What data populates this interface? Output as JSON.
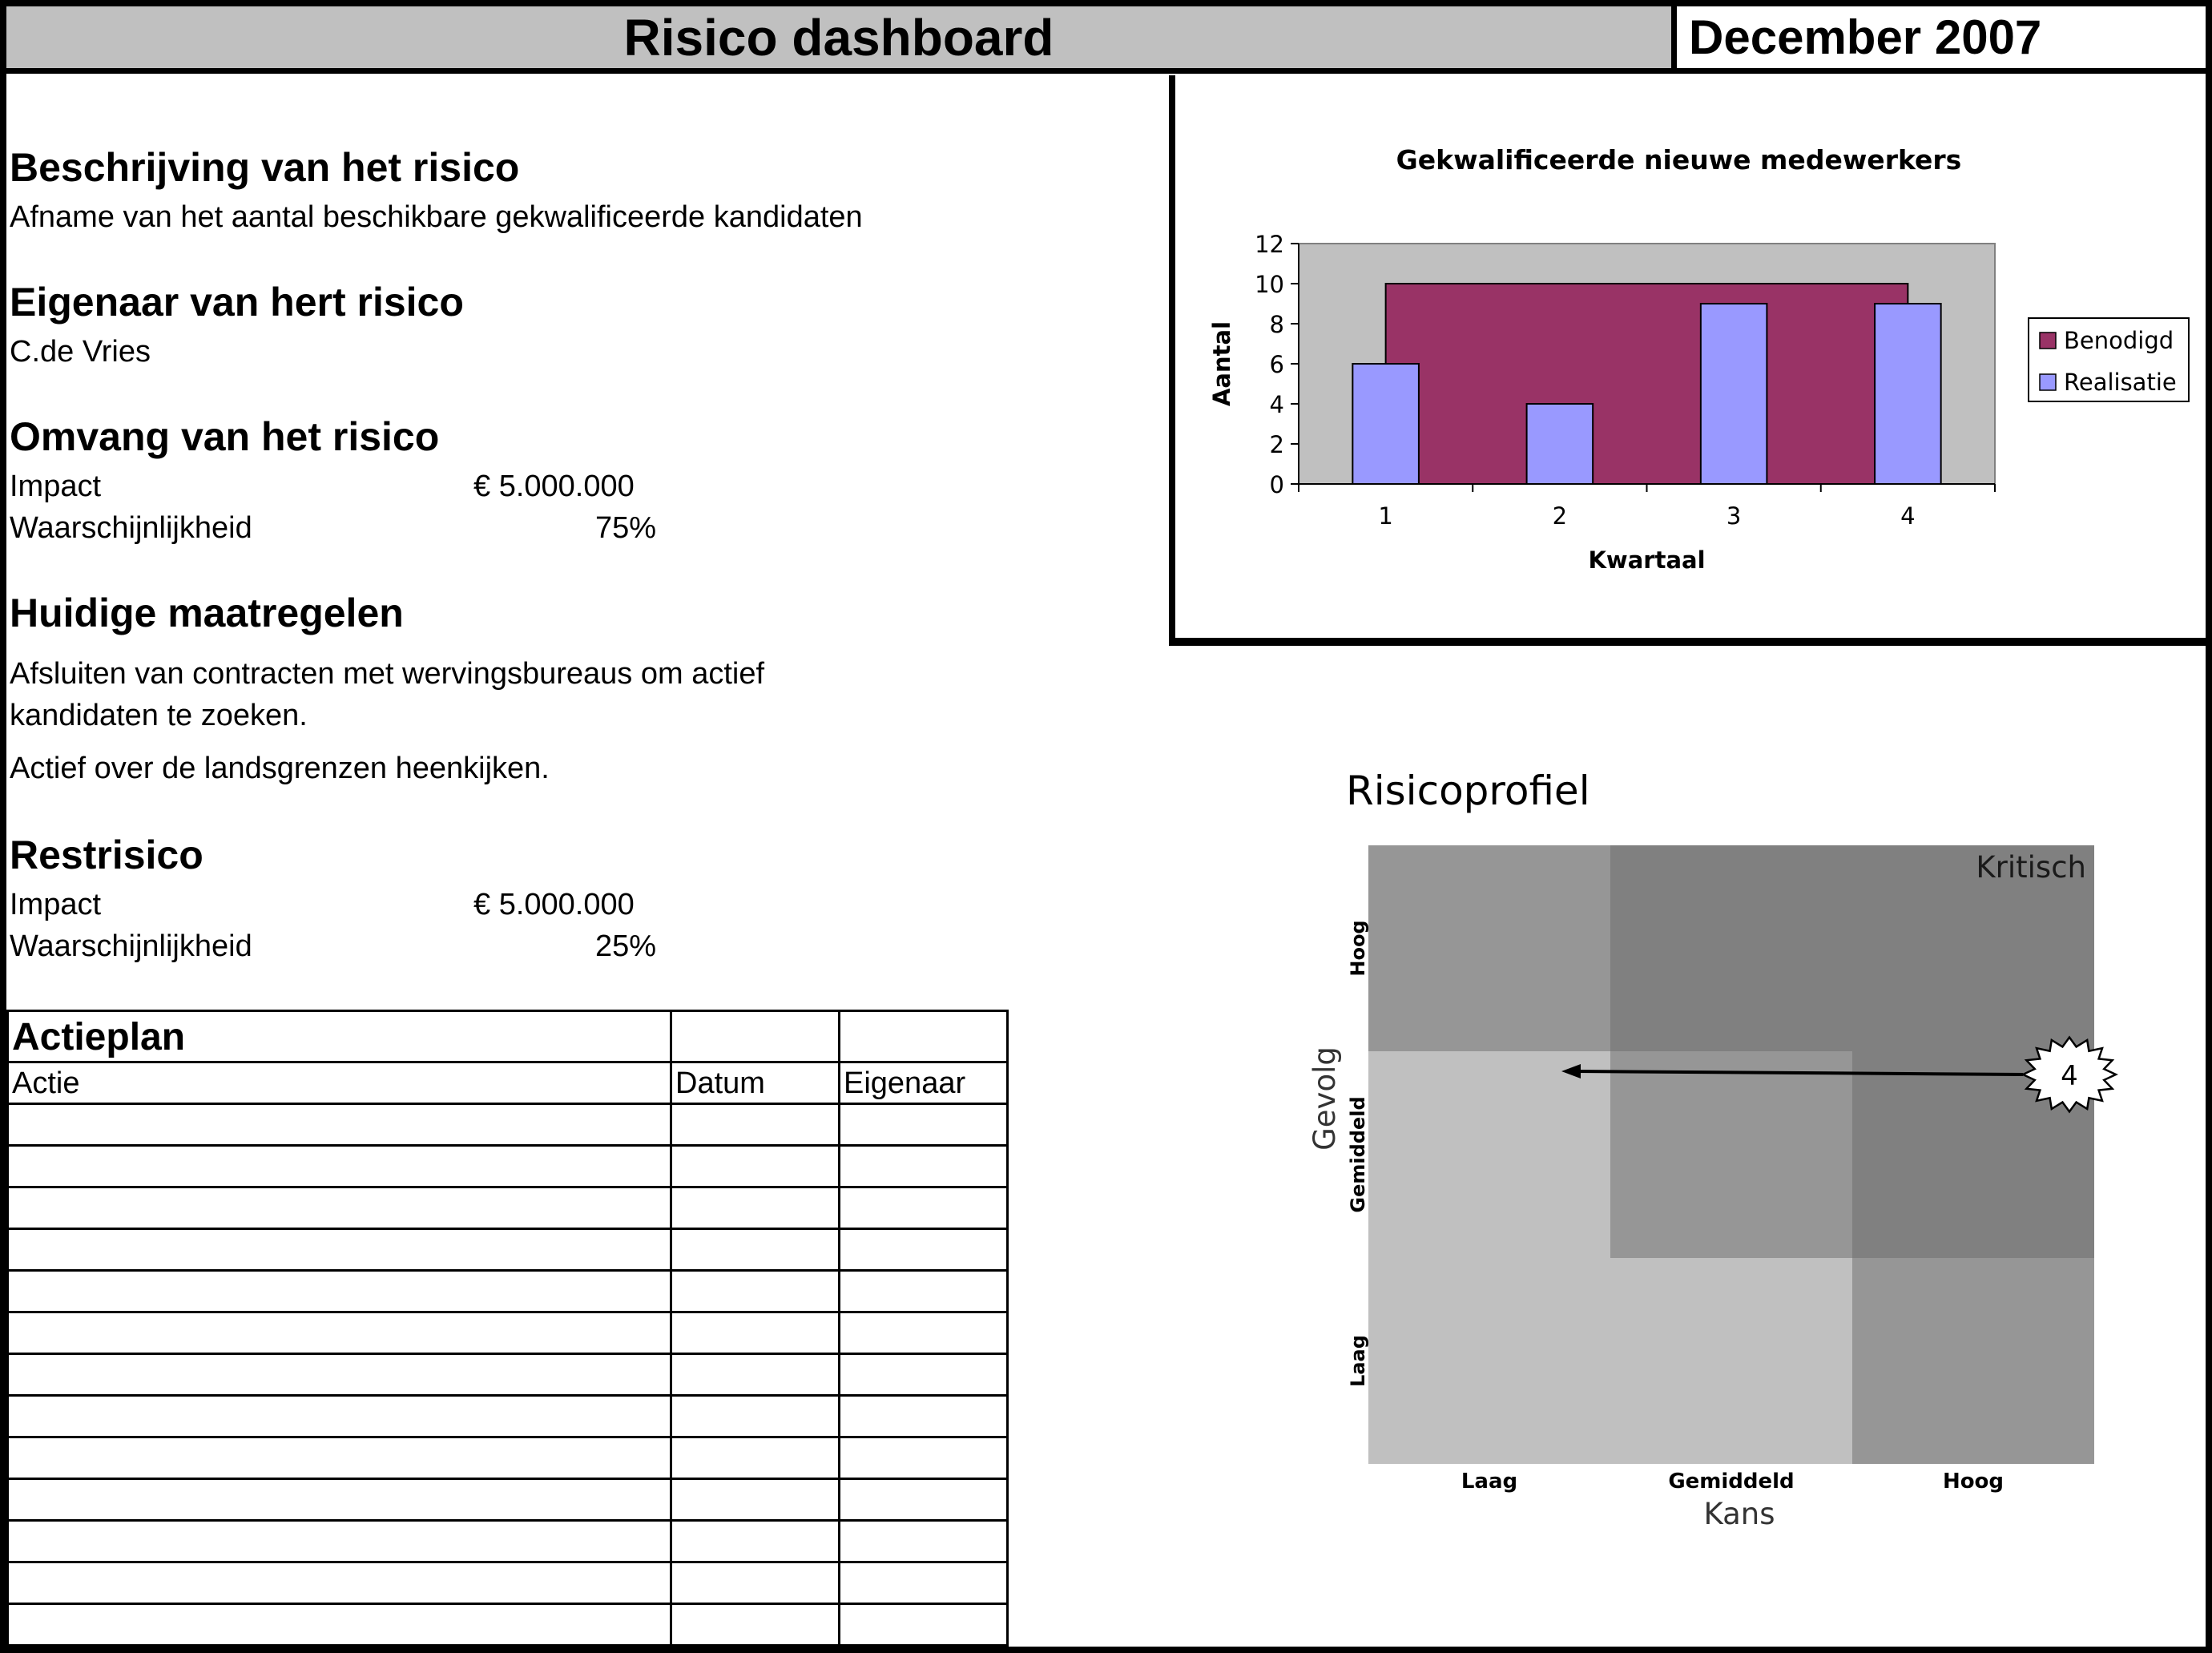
{
  "header": {
    "title": "Risico dashboard",
    "period": "December 2007"
  },
  "description": {
    "heading": "Beschrijving van het risico",
    "text": "Afname van het aantal beschikbare gekwalificeerde kandidaten"
  },
  "owner": {
    "heading": "Eigenaar van hert risico",
    "text": "C.de Vries"
  },
  "scope": {
    "heading": "Omvang van het risico",
    "impact_label": "Impact",
    "impact_value": "€ 5.000.000",
    "probability_label": "Waarschijnlijkheid",
    "probability_value": "75%"
  },
  "measures": {
    "heading": "Huidige maatregelen",
    "line1": "Afsluiten van contracten met wervingsbureaus om actief",
    "line2": "kandidaten te zoeken.",
    "line3": "Actief over de landsgrenzen heenkijken."
  },
  "residual": {
    "heading": "Restrisico",
    "impact_label": "Impact",
    "impact_value": "€ 5.000.000",
    "probability_label": "Waarschijnlijkheid",
    "probability_value": "25%"
  },
  "actionplan": {
    "title": "Actieplan",
    "columns": [
      "Actie",
      "Datum",
      "Eigenaar"
    ],
    "rows": [
      [
        "",
        "",
        ""
      ],
      [
        "",
        "",
        ""
      ],
      [
        "",
        "",
        ""
      ],
      [
        "",
        "",
        ""
      ],
      [
        "",
        "",
        ""
      ],
      [
        "",
        "",
        ""
      ],
      [
        "",
        "",
        ""
      ],
      [
        "",
        "",
        ""
      ],
      [
        "",
        "",
        ""
      ],
      [
        "",
        "",
        ""
      ],
      [
        "",
        "",
        ""
      ],
      [
        "",
        "",
        ""
      ],
      [
        "",
        "",
        ""
      ]
    ]
  },
  "chart_data": [
    {
      "type": "bar",
      "title": "Gekwalificeerde nieuwe medewerkers",
      "xlabel": "Kwartaal",
      "ylabel": "Aantal",
      "categories": [
        "1",
        "2",
        "3",
        "4"
      ],
      "yticks": [
        "0",
        "2",
        "4",
        "6",
        "8",
        "10",
        "12"
      ],
      "ylim": [
        0,
        12
      ],
      "legend_position": "right",
      "series": [
        {
          "name": "Benodigd",
          "values": [
            10,
            10,
            10,
            10
          ],
          "color": "#993366",
          "style": "area"
        },
        {
          "name": "Realisatie",
          "values": [
            6,
            4,
            9,
            9
          ],
          "color": "#9999ff",
          "style": "bar"
        }
      ]
    },
    {
      "type": "heatmap",
      "title": "Risicoprofiel",
      "xlabel": "Kans",
      "ylabel": "Gevolg",
      "x_categories": [
        "Laag",
        "Gemiddeld",
        "Hoog"
      ],
      "y_categories": [
        "Laag",
        "Gemiddeld",
        "Hoog"
      ],
      "zone_label": "Kritisch",
      "zone_colors": {
        "low": "#c0c0c0",
        "medium": "#969696",
        "high": "#808080"
      },
      "risk_marker": {
        "label": "4",
        "from": {
          "kans": "Hoog",
          "gevolg": "Gemiddeld"
        },
        "to": {
          "kans": "Laag",
          "gevolg": "Gemiddeld"
        }
      }
    }
  ]
}
